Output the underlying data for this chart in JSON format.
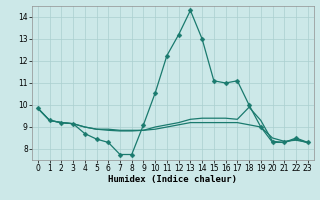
{
  "xlabel": "Humidex (Indice chaleur)",
  "bg_color": "#cce8e8",
  "line_color": "#1a7a6e",
  "grid_color": "#aacfcf",
  "xlim": [
    -0.5,
    23.5
  ],
  "ylim": [
    7.5,
    14.5
  ],
  "xticks": [
    0,
    1,
    2,
    3,
    4,
    5,
    6,
    7,
    8,
    9,
    10,
    11,
    12,
    13,
    14,
    15,
    16,
    17,
    18,
    19,
    20,
    21,
    22,
    23
  ],
  "yticks": [
    8,
    9,
    10,
    11,
    12,
    13,
    14
  ],
  "line1_x": [
    0,
    1,
    2,
    3,
    4,
    5,
    6,
    7,
    8,
    9,
    10,
    11,
    12,
    13,
    14,
    15,
    16,
    17,
    18,
    19,
    20,
    21,
    22,
    23
  ],
  "line1_y": [
    9.85,
    9.3,
    9.2,
    9.15,
    8.7,
    8.45,
    8.3,
    7.75,
    7.75,
    9.1,
    10.55,
    12.25,
    13.2,
    14.3,
    13.0,
    11.1,
    11.0,
    11.1,
    10.0,
    9.0,
    8.3,
    8.3,
    8.5,
    8.3
  ],
  "line2_x": [
    0,
    1,
    2,
    3,
    4,
    5,
    6,
    7,
    8,
    9,
    10,
    11,
    12,
    13,
    14,
    15,
    16,
    17,
    18,
    19,
    20,
    21,
    22,
    23
  ],
  "line2_y": [
    9.85,
    9.3,
    9.2,
    9.15,
    9.0,
    8.9,
    8.9,
    8.85,
    8.85,
    8.85,
    8.9,
    9.0,
    9.1,
    9.2,
    9.2,
    9.2,
    9.2,
    9.2,
    9.1,
    9.0,
    8.5,
    8.35,
    8.4,
    8.3
  ],
  "line3_x": [
    0,
    1,
    2,
    3,
    4,
    5,
    6,
    7,
    8,
    9,
    10,
    11,
    12,
    13,
    14,
    15,
    16,
    17,
    18,
    19,
    20,
    21,
    22,
    23
  ],
  "line3_y": [
    9.85,
    9.3,
    9.2,
    9.15,
    9.0,
    8.9,
    8.85,
    8.82,
    8.82,
    8.85,
    9.0,
    9.1,
    9.2,
    9.35,
    9.4,
    9.4,
    9.4,
    9.35,
    9.9,
    9.3,
    8.35,
    8.3,
    8.45,
    8.28
  ],
  "markersize": 2.5,
  "linewidth": 0.9,
  "tick_fontsize": 5.5,
  "xlabel_fontsize": 6.5
}
